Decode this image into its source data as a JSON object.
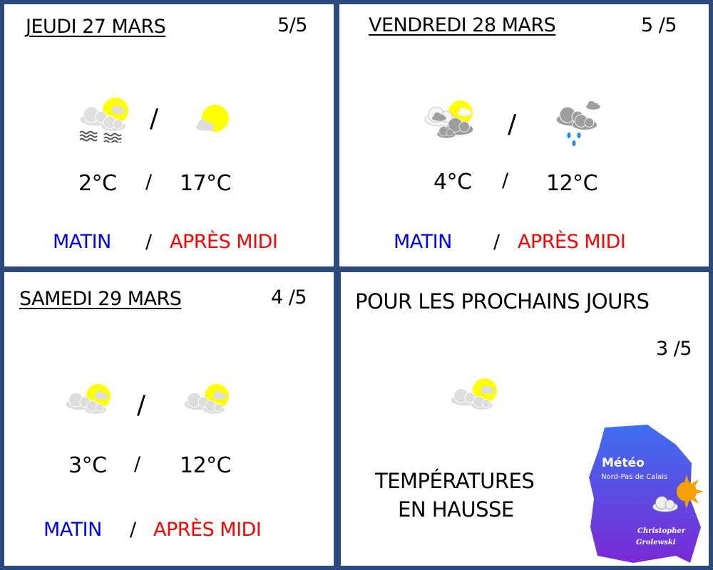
{
  "days": [
    {
      "title": "JEUDI 27 MARS",
      "rating": "5/5",
      "icon_morning": "fog-sun-cloud-icon",
      "icon_afternoon": "sun-small-cloud-icon",
      "temp_morning": "2°C",
      "temp_afternoon": "17°C",
      "label_morning": "MATIN",
      "label_afternoon": "APRÈS MIDI",
      "separator": "/"
    },
    {
      "title": "VENDREDI 28 MARS",
      "rating": "5 /5",
      "icon_morning": "partly-cloudy-icon",
      "icon_afternoon": "rain-showers-icon",
      "temp_morning": "4°C",
      "temp_afternoon": "12°C",
      "label_morning": "MATIN",
      "label_afternoon": "APRÈS MIDI",
      "separator": "/"
    },
    {
      "title": "SAMEDI 29 MARS",
      "rating": "4 /5",
      "icon_morning": "sun-cloud-icon",
      "icon_afternoon": "sun-cloud-icon",
      "temp_morning": "3°C",
      "temp_afternoon": "12°C",
      "label_morning": "MATIN",
      "label_afternoon": "APRÈS MIDI",
      "separator": "/"
    }
  ],
  "outlook": {
    "title": "POUR LES PROCHAINS JOURS",
    "rating": "3 /5",
    "icon": "sun-cloud-icon",
    "line1": "TEMPÉRATURES",
    "line2": "EN HAUSSE"
  },
  "logo": {
    "title": "Météo",
    "subtitle": "Nord-Pas de Calais",
    "author1": "Christopher",
    "author2": "Grolewski"
  },
  "colors": {
    "border": "#2c4a7c",
    "morning": "#0000ff",
    "afternoon": "#ff0000",
    "sun": "#ffff00",
    "cloud": "#dcdcdc",
    "dark_cloud": "#9e9e9e",
    "rain": "#1e88ff"
  }
}
